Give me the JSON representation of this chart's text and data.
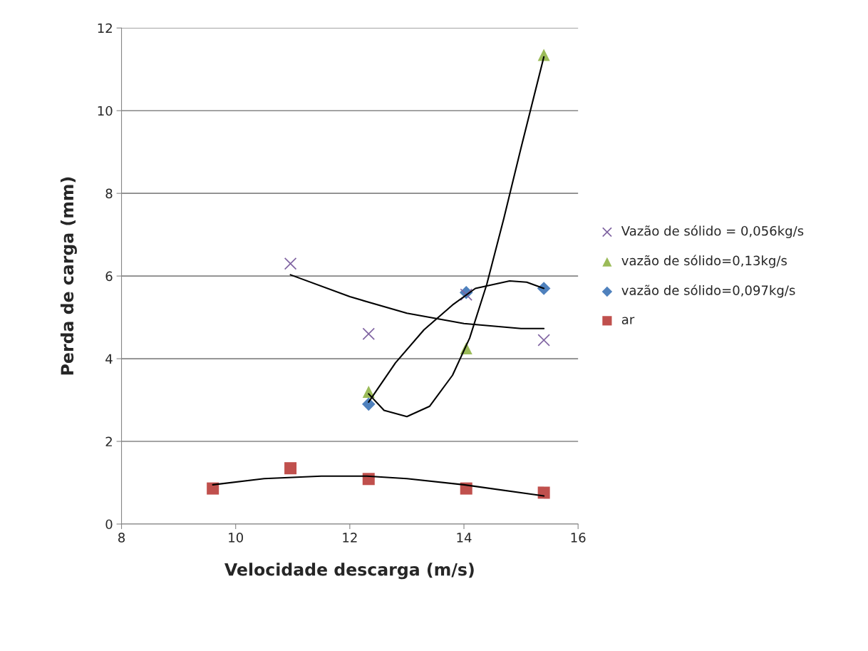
{
  "chart_data": {
    "type": "scatter",
    "xlabel": "Velocidade descarga (m/s)",
    "ylabel": "Perda de carga (mm)",
    "xlim": [
      8,
      16
    ],
    "xticks": [
      8,
      10,
      12,
      14,
      16
    ],
    "ylim": [
      0,
      12
    ],
    "yticks": [
      0,
      2,
      4,
      6,
      8,
      10,
      12
    ],
    "grid": "y",
    "legend": "right",
    "series": [
      {
        "name": "Vazão de sólido = 0,056kg/s",
        "color": "#8064a2",
        "marker": "cross",
        "x": [
          10.96,
          12.33,
          14.04,
          15.4
        ],
        "values": [
          6.3,
          4.6,
          5.55,
          4.45
        ]
      },
      {
        "name": "vazão de sólido=0,13kg/s",
        "color": "#9bbb59",
        "marker": "triangle",
        "x": [
          12.33,
          14.04,
          15.4
        ],
        "values": [
          3.2,
          4.25,
          11.35
        ]
      },
      {
        "name": "vazão de sólido=0,097kg/s",
        "color": "#4f81bd",
        "marker": "diamond",
        "x": [
          12.33,
          14.04,
          15.4
        ],
        "values": [
          2.9,
          5.6,
          5.7
        ]
      },
      {
        "name": "ar",
        "color": "#c0504d",
        "marker": "square",
        "x": [
          9.6,
          10.96,
          12.33,
          14.04,
          15.4
        ],
        "values": [
          0.86,
          1.35,
          1.09,
          0.86,
          0.76
        ]
      },
      {
        "type": "line",
        "color": "#000000",
        "marker": "none",
        "x": [
          10.96,
          12,
          13,
          14,
          15,
          15.4
        ],
        "values": [
          6.03,
          5.5,
          5.1,
          4.85,
          4.73,
          4.73
        ]
      },
      {
        "type": "line",
        "color": "#000000",
        "marker": "none",
        "x": [
          12.33,
          12.6,
          13.0,
          13.4,
          13.8,
          14.1,
          14.4,
          14.7,
          15.0,
          15.4
        ],
        "values": [
          3.15,
          2.75,
          2.6,
          2.85,
          3.6,
          4.5,
          5.8,
          7.4,
          9.1,
          11.3
        ]
      },
      {
        "type": "line",
        "color": "#000000",
        "marker": "none",
        "x": [
          12.33,
          12.8,
          13.3,
          13.8,
          14.2,
          14.8,
          15.1,
          15.4
        ],
        "values": [
          2.95,
          3.9,
          4.7,
          5.3,
          5.7,
          5.88,
          5.85,
          5.7
        ]
      },
      {
        "type": "line",
        "color": "#000000",
        "marker": "none",
        "x": [
          9.6,
          10.5,
          11.5,
          12.3,
          13.0,
          14.0,
          15.4
        ],
        "values": [
          0.95,
          1.1,
          1.16,
          1.16,
          1.1,
          0.95,
          0.68
        ]
      }
    ]
  }
}
